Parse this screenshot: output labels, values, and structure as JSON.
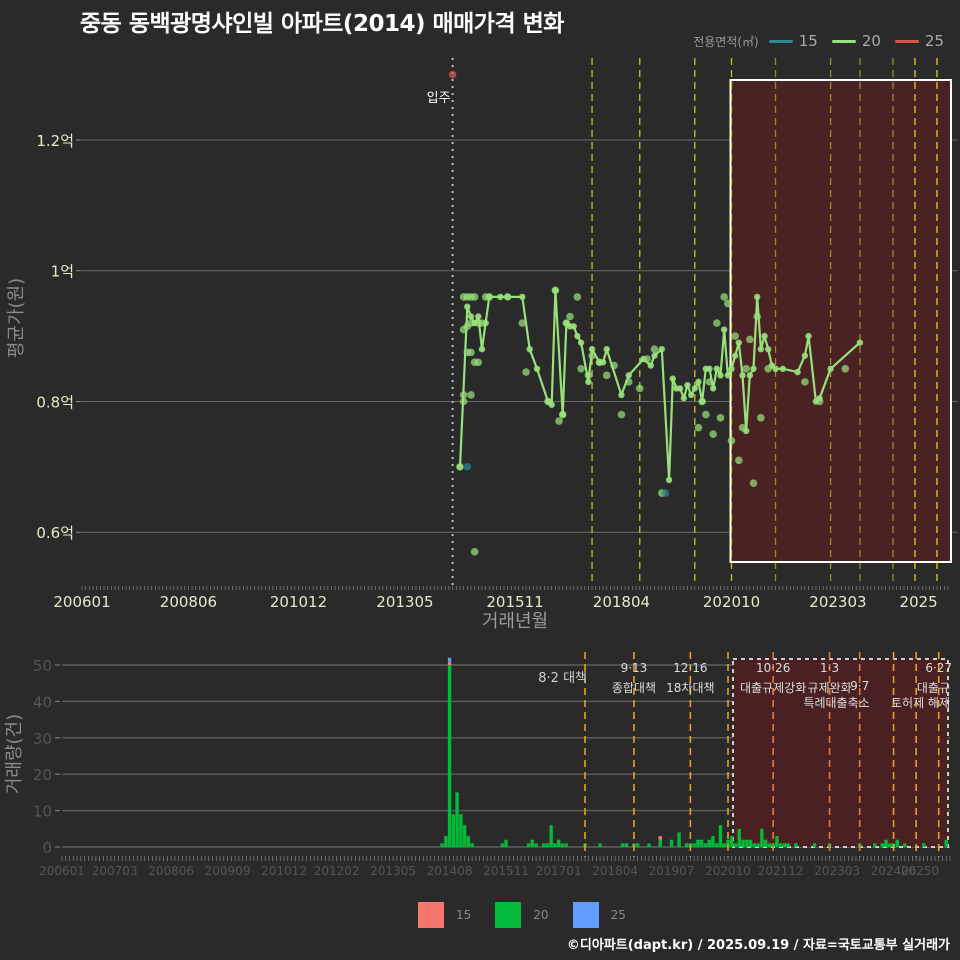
{
  "title": "중동 동백광명샤인빌 아파트(2014) 매매가격 변화",
  "legend_top": {
    "title": "전용면적(㎡)",
    "items": [
      {
        "label": "15",
        "color": "#2a8a8f"
      },
      {
        "label": "20",
        "color": "#98e07a"
      },
      {
        "label": "25",
        "color": "#d9534f"
      }
    ]
  },
  "legend_bottom": {
    "items": [
      {
        "label": "15",
        "color": "#f8766d"
      },
      {
        "label": "20",
        "color": "#00ba38"
      },
      {
        "label": "25",
        "color": "#619cff"
      }
    ]
  },
  "footer": "©디아파트(dapt.kr) / 2025.09.19 / 자료=국토교통부 실거래가",
  "annotation_move_in": "입주",
  "chart_data": [
    {
      "type": "line",
      "title": "중동 동백광명샤인빌 아파트(2014) 매매가격 변화",
      "xlabel": "거래년월",
      "ylabel": "평균가(원)",
      "x_ticks": [
        "200601",
        "200806",
        "201012",
        "201305",
        "201511",
        "201804",
        "202010",
        "202303",
        "2025"
      ],
      "y_ticks": [
        "0.6억",
        "0.8억",
        "1억",
        "1.2억"
      ],
      "y_tick_values": [
        0.6,
        0.8,
        1.0,
        1.2
      ],
      "ylim": [
        0.53,
        1.33
      ],
      "xlim_month_index": [
        0,
        236
      ],
      "grid": true,
      "highlight_box": {
        "from": "202010",
        "to": "202509"
      },
      "policy_lines": [
        "201708",
        "201809",
        "201912",
        "202010",
        "202110",
        "202301",
        "202309",
        "202406",
        "202412",
        "202506"
      ],
      "move_in_line": "201406",
      "series": [
        {
          "name": "20",
          "color": "#98e07a",
          "line_points": [
            [
              "201408",
              0.7
            ],
            [
              "201410",
              0.945
            ],
            [
              "201411",
              0.93
            ],
            [
              "201412",
              0.92
            ],
            [
              "201501",
              0.93
            ],
            [
              "201502",
              0.88
            ],
            [
              "201503",
              0.92
            ],
            [
              "201504",
              0.96
            ],
            [
              "201507",
              0.96
            ],
            [
              "201509",
              0.96
            ],
            [
              "201601",
              0.96
            ],
            [
              "201603",
              0.88
            ],
            [
              "201605",
              0.85
            ],
            [
              "201608",
              0.8
            ],
            [
              "201609",
              0.795
            ],
            [
              "201610",
              0.97
            ],
            [
              "201612",
              0.78
            ],
            [
              "201701",
              0.92
            ],
            [
              "201702",
              0.915
            ],
            [
              "201703",
              0.915
            ],
            [
              "201704",
              0.9
            ],
            [
              "201705",
              0.89
            ],
            [
              "201707",
              0.83
            ],
            [
              "201708",
              0.88
            ],
            [
              "201710",
              0.86
            ],
            [
              "201711",
              0.86
            ],
            [
              "201712",
              0.88
            ],
            [
              "201804",
              0.81
            ],
            [
              "201806",
              0.84
            ],
            [
              "201810",
              0.865
            ],
            [
              "201812",
              0.855
            ],
            [
              "201901",
              0.87
            ],
            [
              "201903",
              0.88
            ],
            [
              "201905",
              0.68
            ],
            [
              "201906",
              0.835
            ],
            [
              "201907",
              0.82
            ],
            [
              "201908",
              0.82
            ],
            [
              "201909",
              0.805
            ],
            [
              "201910",
              0.825
            ],
            [
              "201911",
              0.81
            ],
            [
              "201912",
              0.82
            ],
            [
              "202001",
              0.83
            ],
            [
              "202002",
              0.8
            ],
            [
              "202003",
              0.85
            ],
            [
              "202004",
              0.85
            ],
            [
              "202005",
              0.82
            ],
            [
              "202006",
              0.85
            ],
            [
              "202007",
              0.84
            ],
            [
              "202008",
              0.91
            ],
            [
              "202009",
              0.84
            ],
            [
              "202010",
              0.85
            ],
            [
              "202011",
              0.87
            ],
            [
              "202012",
              0.89
            ],
            [
              "202101",
              0.84
            ],
            [
              "202102",
              0.755
            ],
            [
              "202103",
              0.84
            ],
            [
              "202104",
              0.85
            ],
            [
              "202105",
              0.96
            ],
            [
              "202106",
              0.88
            ],
            [
              "202107",
              0.9
            ],
            [
              "202108",
              0.88
            ],
            [
              "202109",
              0.855
            ],
            [
              "202110",
              0.85
            ],
            [
              "202112",
              0.85
            ],
            [
              "202204",
              0.845
            ],
            [
              "202206",
              0.87
            ],
            [
              "202207",
              0.9
            ],
            [
              "202209",
              0.8
            ],
            [
              "202210",
              0.805
            ],
            [
              "202301",
              0.85
            ],
            [
              "202309",
              0.89
            ]
          ],
          "scatter_points": [
            [
              "201408",
              0.7
            ],
            [
              "201409",
              0.91
            ],
            [
              "201409",
              0.96
            ],
            [
              "201409",
              0.8
            ],
            [
              "201409",
              0.81
            ],
            [
              "201410",
              0.96
            ],
            [
              "201410",
              0.875
            ],
            [
              "201410",
              0.915
            ],
            [
              "201411",
              0.96
            ],
            [
              "201411",
              0.92
            ],
            [
              "201411",
              0.875
            ],
            [
              "201411",
              0.81
            ],
            [
              "201412",
              0.96
            ],
            [
              "201412",
              0.86
            ],
            [
              "201412",
              0.57
            ],
            [
              "201501",
              0.92
            ],
            [
              "201501",
              0.86
            ],
            [
              "201502",
              0.92
            ],
            [
              "201503",
              0.96
            ],
            [
              "201504",
              0.96
            ],
            [
              "201509",
              0.96
            ],
            [
              "201601",
              0.92
            ],
            [
              "201602",
              0.845
            ],
            [
              "201608",
              0.8
            ],
            [
              "201610",
              0.97
            ],
            [
              "201611",
              0.77
            ],
            [
              "201612",
              0.78
            ],
            [
              "201701",
              0.92
            ],
            [
              "201702",
              0.93
            ],
            [
              "201704",
              0.96
            ],
            [
              "201705",
              0.85
            ],
            [
              "201707",
              0.84
            ],
            [
              "201708",
              0.87
            ],
            [
              "201710",
              0.86
            ],
            [
              "201712",
              0.84
            ],
            [
              "201802",
              0.855
            ],
            [
              "201804",
              0.78
            ],
            [
              "201806",
              0.83
            ],
            [
              "201809",
              0.82
            ],
            [
              "201811",
              0.865
            ],
            [
              "201901",
              0.88
            ],
            [
              "201903",
              0.66
            ],
            [
              "202001",
              0.76
            ],
            [
              "202002",
              0.8
            ],
            [
              "202003",
              0.78
            ],
            [
              "202004",
              0.83
            ],
            [
              "202005",
              0.75
            ],
            [
              "202006",
              0.92
            ],
            [
              "202007",
              0.775
            ],
            [
              "202008",
              0.96
            ],
            [
              "202009",
              0.95
            ],
            [
              "202010",
              0.74
            ],
            [
              "202011",
              0.9
            ],
            [
              "202012",
              0.71
            ],
            [
              "202101",
              0.76
            ],
            [
              "202102",
              0.85
            ],
            [
              "202103",
              0.895
            ],
            [
              "202104",
              0.675
            ],
            [
              "202105",
              0.93
            ],
            [
              "202106",
              0.775
            ],
            [
              "202108",
              0.85
            ],
            [
              "202206",
              0.83
            ],
            [
              "202210",
              0.8
            ],
            [
              "202305",
              0.85
            ]
          ]
        },
        {
          "name": "15",
          "color": "#2a8a8f",
          "scatter_points": [
            [
              "201410",
              0.7
            ],
            [
              "201904",
              0.66
            ]
          ]
        },
        {
          "name": "25",
          "color": "#d9534f",
          "scatter_points": [
            [
              "201406",
              1.3
            ]
          ]
        }
      ]
    },
    {
      "type": "bar",
      "title": "",
      "xlabel": "",
      "ylabel": "거래량(건)",
      "x_ticks": [
        "200601",
        "200703",
        "200806",
        "200909",
        "201012",
        "201202",
        "201305",
        "201408",
        "201511",
        "201701",
        "201804",
        "201907",
        "202010",
        "202112",
        "202303",
        "202406",
        "20250"
      ],
      "y_ticks": [
        0,
        10,
        20,
        30,
        40,
        50
      ],
      "ylim": [
        0,
        53
      ],
      "grid": true,
      "highlight_box": {
        "from": "202010",
        "to": "202509",
        "style": "dashed"
      },
      "policy_events": [
        {
          "month": "201708",
          "date": "8·2",
          "label": "대책"
        },
        {
          "month": "201809",
          "date": "9·13",
          "label": "종합대책"
        },
        {
          "month": "201912",
          "date": "12·16",
          "label": "18차대책"
        },
        {
          "month": "202010",
          "date": "",
          "label": ""
        },
        {
          "month": "202110",
          "date": "10·26",
          "label": "대출규제강화"
        },
        {
          "month": "202301",
          "date": "1·3",
          "label": "규제완화"
        },
        {
          "month": "202309",
          "date": "9·7",
          "label": "특례대출축소"
        },
        {
          "month": "202406",
          "date": "",
          "label": ""
        },
        {
          "month": "202412",
          "date": "",
          "label": "토허제 해제"
        },
        {
          "month": "202506",
          "date": "6·27",
          "label": "대출규"
        }
      ],
      "series": [
        {
          "name": "20",
          "color": "#00ba38",
          "values": [
            [
              "201406",
              1
            ],
            [
              "201407",
              3
            ],
            [
              "201408",
              50
            ],
            [
              "201409",
              9
            ],
            [
              "201410",
              15
            ],
            [
              "201411",
              9
            ],
            [
              "201412",
              6
            ],
            [
              "201501",
              3
            ],
            [
              "201502",
              1
            ],
            [
              "201510",
              1
            ],
            [
              "201511",
              2
            ],
            [
              "201605",
              1
            ],
            [
              "201606",
              2
            ],
            [
              "201607",
              1
            ],
            [
              "201609",
              1
            ],
            [
              "201610",
              1
            ],
            [
              "201611",
              6
            ],
            [
              "201612",
              1
            ],
            [
              "201701",
              2
            ],
            [
              "201702",
              1
            ],
            [
              "201703",
              1
            ],
            [
              "201708",
              1
            ],
            [
              "201712",
              1
            ],
            [
              "201806",
              1
            ],
            [
              "201807",
              1
            ],
            [
              "201809",
              1
            ],
            [
              "201810",
              1
            ],
            [
              "201901",
              1
            ],
            [
              "201904",
              2
            ],
            [
              "201907",
              2
            ],
            [
              "201909",
              4
            ],
            [
              "201911",
              1
            ],
            [
              "201912",
              1
            ],
            [
              "202001",
              1
            ],
            [
              "202002",
              2
            ],
            [
              "202003",
              2
            ],
            [
              "202004",
              1
            ],
            [
              "202005",
              2
            ],
            [
              "202006",
              3
            ],
            [
              "202007",
              1
            ],
            [
              "202008",
              6
            ],
            [
              "202009",
              1
            ],
            [
              "202010",
              2
            ],
            [
              "202011",
              3
            ],
            [
              "202012",
              1
            ],
            [
              "202101",
              5
            ],
            [
              "202102",
              2
            ],
            [
              "202103",
              2
            ],
            [
              "202104",
              2
            ],
            [
              "202105",
              1
            ],
            [
              "202106",
              1
            ],
            [
              "202107",
              5
            ],
            [
              "202108",
              2
            ],
            [
              "202109",
              1
            ],
            [
              "202110",
              1
            ],
            [
              "202111",
              3
            ],
            [
              "202112",
              1
            ],
            [
              "202201",
              1
            ],
            [
              "202202",
              1
            ],
            [
              "202204",
              1
            ],
            [
              "202209",
              1
            ],
            [
              "202301",
              1
            ],
            [
              "202309",
              1
            ],
            [
              "202401",
              1
            ],
            [
              "202403",
              1
            ],
            [
              "202404",
              2
            ],
            [
              "202405",
              1
            ],
            [
              "202406",
              1
            ],
            [
              "202407",
              2
            ],
            [
              "202409",
              1
            ],
            [
              "202502",
              1
            ],
            [
              "202508",
              2
            ]
          ]
        },
        {
          "name": "15",
          "color": "#f8766d",
          "values": [
            [
              "201408",
              1
            ],
            [
              "201904",
              1
            ]
          ]
        },
        {
          "name": "25",
          "color": "#619cff",
          "values": [
            [
              "201408",
              1
            ]
          ]
        }
      ]
    }
  ]
}
